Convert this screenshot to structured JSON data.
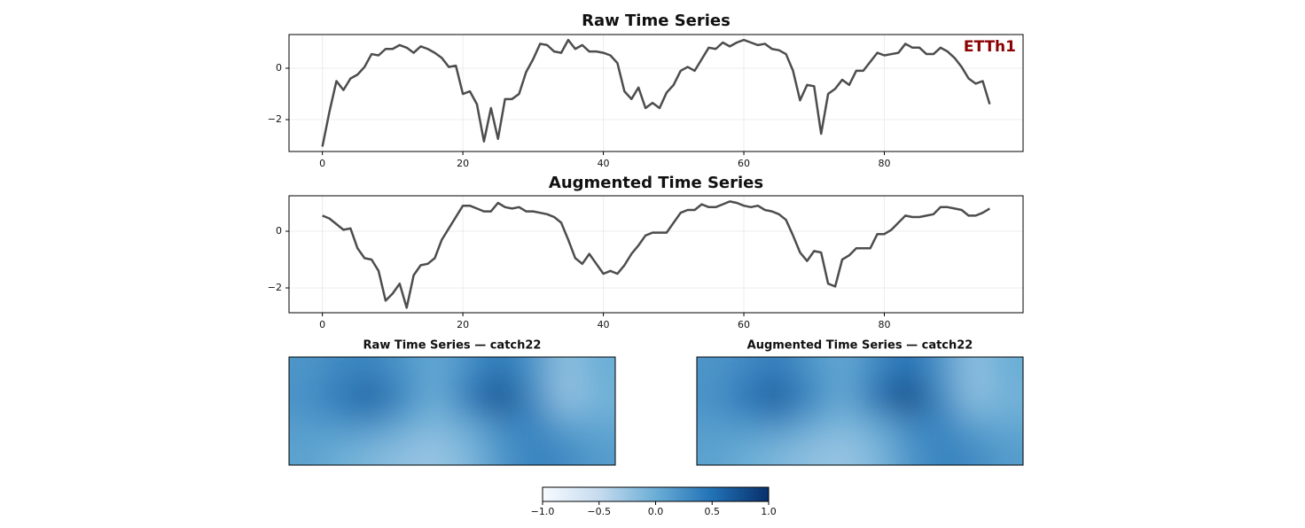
{
  "chart_data": [
    {
      "type": "line",
      "title": "Raw Time Series",
      "annotation": "ETTh1",
      "annotation_color": "#8b0000",
      "grid": true,
      "xlim": [
        -4.75,
        99.75
      ],
      "ylim": [
        -3.24,
        1.31
      ],
      "xticks": [
        0,
        20,
        40,
        60,
        80
      ],
      "yticks": [
        {
          "value": -2,
          "label": "−2"
        },
        0
      ],
      "x": [
        0,
        1,
        2,
        3,
        4,
        5,
        6,
        7,
        8,
        9,
        10,
        11,
        12,
        13,
        14,
        15,
        16,
        17,
        18,
        19,
        20,
        21,
        22,
        23,
        24,
        25,
        26,
        27,
        28,
        29,
        30,
        31,
        32,
        33,
        34,
        35,
        36,
        37,
        38,
        39,
        40,
        41,
        42,
        43,
        44,
        45,
        46,
        47,
        48,
        49,
        50,
        51,
        52,
        53,
        54,
        55,
        56,
        57,
        58,
        59,
        60,
        61,
        62,
        63,
        64,
        65,
        66,
        67,
        68,
        69,
        70,
        71,
        72,
        73,
        74,
        75,
        76,
        77,
        78,
        79,
        80,
        81,
        82,
        83,
        84,
        85,
        86,
        87,
        88,
        89,
        90,
        91,
        92,
        93,
        94,
        95
      ],
      "series": [
        {
          "color": "#4d4d4d",
          "values": [
            -3.05,
            -1.7,
            -0.5,
            -0.85,
            -0.4,
            -0.25,
            0.05,
            0.55,
            0.5,
            0.75,
            0.75,
            0.9,
            0.8,
            0.6,
            0.85,
            0.75,
            0.6,
            0.4,
            0.05,
            0.1,
            -1.0,
            -0.9,
            -1.4,
            -2.85,
            -1.55,
            -2.75,
            -1.2,
            -1.2,
            -1.0,
            -0.15,
            0.35,
            0.95,
            0.9,
            0.65,
            0.6,
            1.1,
            0.75,
            0.9,
            0.65,
            0.65,
            0.6,
            0.5,
            0.2,
            -0.9,
            -1.2,
            -0.75,
            -1.55,
            -1.35,
            -1.55,
            -0.95,
            -0.65,
            -0.1,
            0.05,
            -0.1,
            0.35,
            0.8,
            0.75,
            1.0,
            0.85,
            1.0,
            1.1,
            1.0,
            0.9,
            0.95,
            0.75,
            0.7,
            0.55,
            -0.1,
            -1.25,
            -0.65,
            -0.7,
            -2.55,
            -1.0,
            -0.8,
            -0.45,
            -0.65,
            -0.1,
            -0.1,
            0.25,
            0.6,
            0.5,
            0.55,
            0.6,
            0.95,
            0.8,
            0.8,
            0.55,
            0.55,
            0.8,
            0.65,
            0.4,
            0.05,
            -0.4,
            -0.6,
            -0.5,
            -1.4
          ]
        }
      ]
    },
    {
      "type": "line",
      "title": "Augmented Time Series",
      "grid": true,
      "xlim": [
        -4.75,
        99.75
      ],
      "ylim": [
        -2.875,
        1.25
      ],
      "xticks": [
        0,
        20,
        40,
        60,
        80
      ],
      "yticks": [
        {
          "value": -2,
          "label": "−2"
        },
        0
      ],
      "x": [
        0,
        1,
        2,
        3,
        4,
        5,
        6,
        7,
        8,
        9,
        10,
        11,
        12,
        13,
        14,
        15,
        16,
        17,
        18,
        19,
        20,
        21,
        22,
        23,
        24,
        25,
        26,
        27,
        28,
        29,
        30,
        31,
        32,
        33,
        34,
        35,
        36,
        37,
        38,
        39,
        40,
        41,
        42,
        43,
        44,
        45,
        46,
        47,
        48,
        49,
        50,
        51,
        52,
        53,
        54,
        55,
        56,
        57,
        58,
        59,
        60,
        61,
        62,
        63,
        64,
        65,
        66,
        67,
        68,
        69,
        70,
        71,
        72,
        73,
        74,
        75,
        76,
        77,
        78,
        79,
        80,
        81,
        82,
        83,
        84,
        85,
        86,
        87,
        88,
        89,
        90,
        91,
        92,
        93,
        94,
        95
      ],
      "series": [
        {
          "color": "#4d4d4d",
          "values": [
            0.55,
            0.45,
            0.25,
            0.05,
            0.1,
            -0.6,
            -0.95,
            -1.0,
            -1.4,
            -2.45,
            -2.2,
            -1.85,
            -2.7,
            -1.55,
            -1.2,
            -1.15,
            -0.95,
            -0.3,
            0.1,
            0.5,
            0.9,
            0.9,
            0.8,
            0.7,
            0.7,
            1.0,
            0.85,
            0.8,
            0.85,
            0.7,
            0.7,
            0.65,
            0.6,
            0.5,
            0.3,
            -0.3,
            -0.95,
            -1.15,
            -0.8,
            -1.15,
            -1.5,
            -1.4,
            -1.5,
            -1.2,
            -0.8,
            -0.5,
            -0.15,
            -0.05,
            -0.05,
            -0.05,
            0.3,
            0.65,
            0.75,
            0.75,
            0.95,
            0.85,
            0.85,
            0.95,
            1.05,
            1.0,
            0.9,
            0.85,
            0.9,
            0.75,
            0.7,
            0.6,
            0.4,
            -0.15,
            -0.75,
            -1.05,
            -0.7,
            -0.75,
            -1.85,
            -1.95,
            -1.0,
            -0.85,
            -0.6,
            -0.6,
            -0.6,
            -0.1,
            -0.1,
            0.05,
            0.3,
            0.55,
            0.5,
            0.5,
            0.55,
            0.6,
            0.85,
            0.85,
            0.8,
            0.75,
            0.55,
            0.55,
            0.65,
            0.8
          ]
        }
      ]
    },
    {
      "type": "heatmap",
      "title": "Raw Time Series — catch22",
      "zlim": [
        -1,
        1
      ],
      "colors": [
        "#f7fbff",
        "#c6dbef",
        "#6baed6",
        "#2171b5",
        "#08306b"
      ],
      "values": [
        [
          0.2,
          0.3,
          0.35,
          0.2,
          0.05,
          0.25,
          0.45,
          0.2,
          -0.2,
          0.0
        ],
        [
          0.25,
          0.45,
          0.65,
          0.35,
          0.0,
          0.5,
          0.85,
          0.3,
          -0.25,
          -0.05
        ],
        [
          0.15,
          0.2,
          0.25,
          0.05,
          -0.1,
          0.05,
          0.3,
          0.35,
          0.1,
          0.05
        ],
        [
          0.1,
          0.0,
          -0.1,
          -0.2,
          -0.25,
          -0.1,
          0.2,
          0.35,
          0.3,
          0.15
        ]
      ]
    },
    {
      "type": "heatmap",
      "title": "Augmented Time Series — catch22",
      "zlim": [
        -1,
        1
      ],
      "colors": [
        "#f7fbff",
        "#c6dbef",
        "#6baed6",
        "#2171b5",
        "#08306b"
      ],
      "values": [
        [
          0.2,
          0.3,
          0.4,
          0.2,
          0.05,
          0.3,
          0.5,
          0.2,
          -0.2,
          0.0
        ],
        [
          0.25,
          0.5,
          0.7,
          0.35,
          0.05,
          0.55,
          0.95,
          0.3,
          -0.2,
          -0.05
        ],
        [
          0.15,
          0.2,
          0.25,
          0.05,
          -0.1,
          0.05,
          0.3,
          0.35,
          0.1,
          0.05
        ],
        [
          0.1,
          0.0,
          -0.1,
          -0.2,
          -0.25,
          -0.1,
          0.2,
          0.35,
          0.3,
          0.15
        ]
      ]
    },
    {
      "type": "colorbar",
      "zlim": [
        -1,
        1
      ],
      "colors": [
        "#f7fbff",
        "#c6dbef",
        "#6baed6",
        "#2171b5",
        "#08306b"
      ],
      "ticks": [
        {
          "value": -1,
          "label": "−1.0"
        },
        {
          "value": -0.5,
          "label": "−0.5"
        },
        {
          "value": 0,
          "label": "0.0"
        },
        0.5,
        {
          "value": 1,
          "label": "1.0"
        }
      ]
    }
  ]
}
